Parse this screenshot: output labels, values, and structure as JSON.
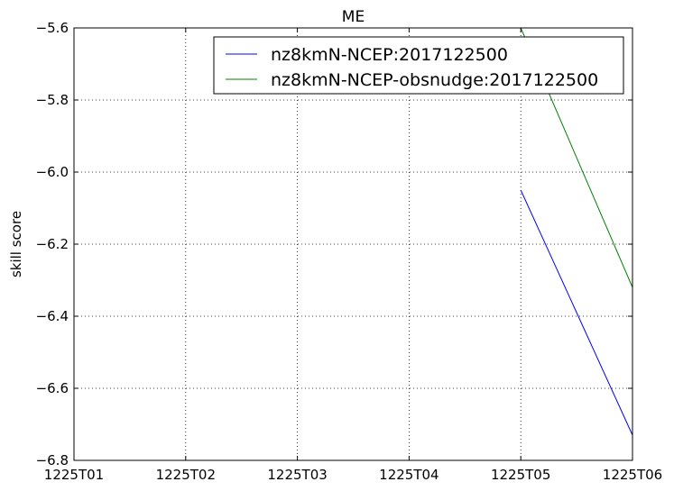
{
  "chart_data": {
    "type": "line",
    "title": "ME",
    "xlabel": "",
    "ylabel": "skill score",
    "x": [
      "1225T01",
      "1225T02",
      "1225T03",
      "1225T04",
      "1225T05",
      "1225T06"
    ],
    "ylim": [
      -6.8,
      -5.6
    ],
    "yticks": [
      -6.8,
      -6.6,
      -6.4,
      -6.2,
      -6.0,
      -5.8,
      -5.6
    ],
    "ytick_labels": [
      "−6.8",
      "−6.6",
      "−6.4",
      "−6.2",
      "−6.0",
      "−5.8",
      "−5.6"
    ],
    "grid": true,
    "legend_position": "top-right",
    "series": [
      {
        "name": "nz8kmN-NCEP:2017122500",
        "color": "#0000ff",
        "points": [
          {
            "x": "1225T05",
            "y": -6.05
          },
          {
            "x": "1225T06",
            "y": -6.73
          }
        ]
      },
      {
        "name": "nz8kmN-NCEP-obsnudge:2017122500",
        "color": "#008000",
        "points": [
          {
            "x": "1225T05",
            "y": -5.6
          },
          {
            "x": "1225T06",
            "y": -6.32
          }
        ]
      }
    ]
  }
}
